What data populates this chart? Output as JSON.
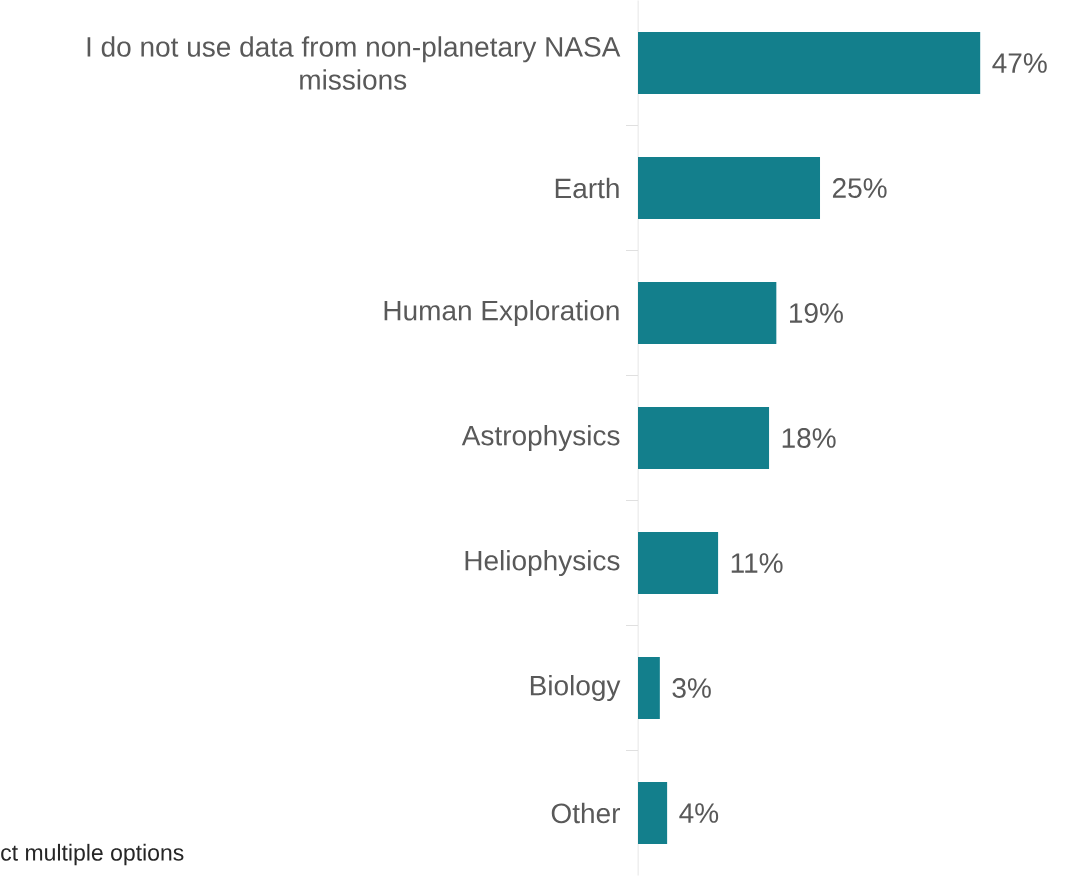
{
  "chart_data": {
    "type": "bar",
    "orientation": "horizontal",
    "categories": [
      "I do not use data from non-planetary NASA missions",
      "Earth",
      "Human Exploration",
      "Astrophysics",
      "Heliophysics",
      "Biology",
      "Other"
    ],
    "values": [
      47,
      25,
      19,
      18,
      11,
      3,
      4
    ],
    "value_labels": [
      "47%",
      "25%",
      "19%",
      "18%",
      "11%",
      "3%",
      "4%"
    ],
    "color": "#137f8c",
    "annotations": [
      "ct multiple options"
    ]
  }
}
